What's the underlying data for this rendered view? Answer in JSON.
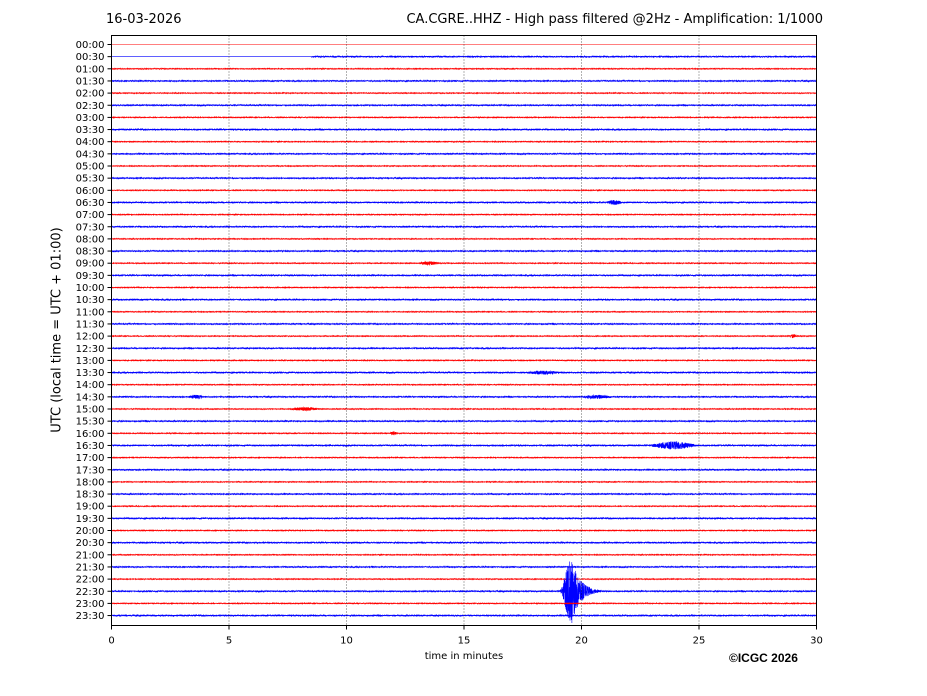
{
  "header": {
    "date": "16-03-2026",
    "title": "CA.CGRE..HHZ - High pass filtered @2Hz - Amplification: 1/1000"
  },
  "footer": {
    "copyright": "©ICGC 2026"
  },
  "colors": {
    "trace_odd": "#ff0000",
    "trace_even": "#0000ff",
    "axis": "#000000",
    "grid": "#000000"
  },
  "chart_data": {
    "type": "line",
    "title": "CA.CGRE..HHZ - High pass filtered @2Hz - Amplification: 1/1000",
    "xlabel": "time in minutes",
    "ylabel": "UTC (local time = UTC + 01:00)",
    "xlim": [
      0,
      30
    ],
    "xticks": [
      "0",
      "5",
      "10",
      "15",
      "20",
      "25",
      "30"
    ],
    "grid": "vertical dotted",
    "rows": [
      "00:00",
      "00:30",
      "01:00",
      "01:30",
      "02:00",
      "02:30",
      "03:00",
      "03:30",
      "04:00",
      "04:30",
      "05:00",
      "05:30",
      "06:00",
      "06:30",
      "07:00",
      "07:30",
      "08:00",
      "08:30",
      "09:00",
      "09:30",
      "10:00",
      "10:30",
      "11:00",
      "11:30",
      "12:00",
      "12:30",
      "13:00",
      "13:30",
      "14:00",
      "14:30",
      "15:00",
      "15:30",
      "16:00",
      "16:30",
      "17:00",
      "17:30",
      "18:00",
      "18:30",
      "19:00",
      "19:30",
      "20:00",
      "20:30",
      "21:00",
      "21:30",
      "22:00",
      "22:30",
      "23:00",
      "23:30"
    ],
    "trace_start_minute": 8.5,
    "trace_start_row": "00:30",
    "events": [
      {
        "row": "06:30",
        "start_min": 21.0,
        "end_min": 21.8,
        "amplitude": 2.5
      },
      {
        "row": "09:00",
        "start_min": 13.0,
        "end_min": 14.0,
        "amplitude": 2.0
      },
      {
        "row": "12:00",
        "start_min": 28.8,
        "end_min": 29.2,
        "amplitude": 2.0
      },
      {
        "row": "13:30",
        "start_min": 17.5,
        "end_min": 19.2,
        "amplitude": 2.0
      },
      {
        "row": "14:30",
        "start_min": 3.2,
        "end_min": 4.0,
        "amplitude": 2.0
      },
      {
        "row": "14:30",
        "start_min": 19.8,
        "end_min": 21.5,
        "amplitude": 2.0
      },
      {
        "row": "15:00",
        "start_min": 7.5,
        "end_min": 9.0,
        "amplitude": 1.8
      },
      {
        "row": "16:00",
        "start_min": 11.8,
        "end_min": 12.2,
        "amplitude": 2.0
      },
      {
        "row": "16:30",
        "start_min": 22.8,
        "end_min": 25.0,
        "amplitude": 4.0
      },
      {
        "row": "22:30",
        "start_min": 19.0,
        "end_min": 21.0,
        "amplitude": 42.0
      }
    ]
  }
}
